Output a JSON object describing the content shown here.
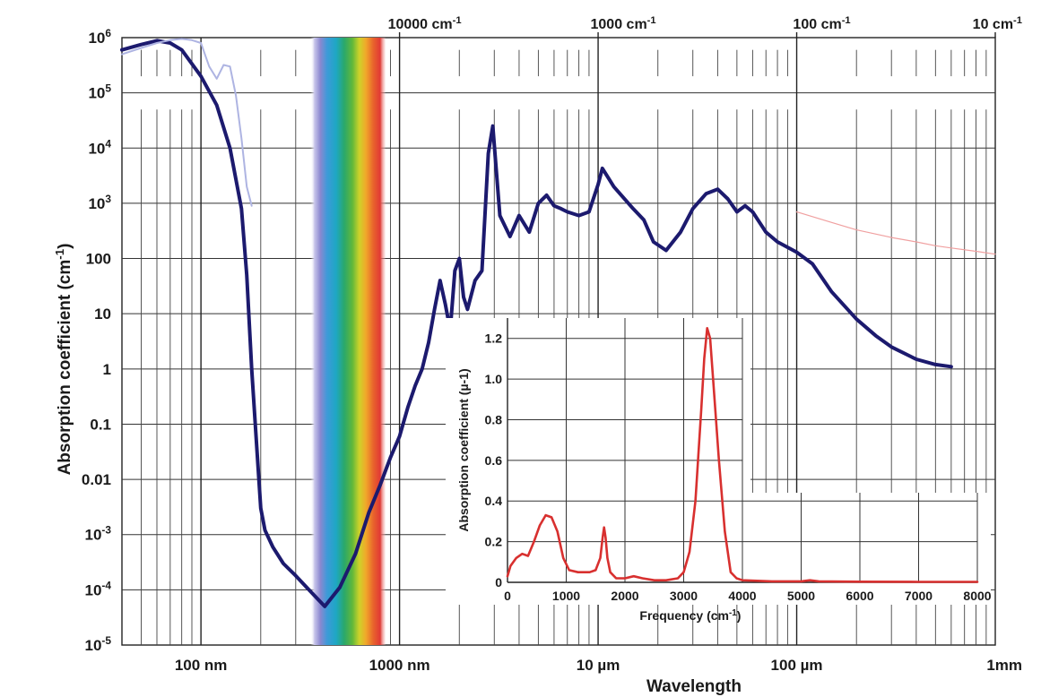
{
  "chart_data": [
    {
      "type": "line",
      "xlabel": "Wavelength",
      "ylabel": "Absorption coefficient (cm-1)",
      "xscale": "log",
      "yscale": "log",
      "xlim_m": [
        4e-08,
        0.001
      ],
      "ylim": [
        1e-05,
        1000000.0
      ],
      "grid": true,
      "x_ticks": [
        {
          "value": 1e-07,
          "label": "100 nm"
        },
        {
          "value": 1e-06,
          "label": "1000 nm"
        },
        {
          "value": 1e-05,
          "label": "10 µm"
        },
        {
          "value": 0.0001,
          "label": "100 µm"
        },
        {
          "value": 0.001,
          "label": "1mm"
        }
      ],
      "top_ticks": [
        {
          "value": 1e-06,
          "label": "10000 cm-1"
        },
        {
          "value": 1e-05,
          "label": "1000 cm-1"
        },
        {
          "value": 0.0001,
          "label": "100 cm-1"
        },
        {
          "value": 0.001,
          "label": "10 cm-1"
        }
      ],
      "y_ticks": [
        {
          "value": 1000000.0,
          "base": "10",
          "exp": "6"
        },
        {
          "value": 100000.0,
          "base": "10",
          "exp": "5"
        },
        {
          "value": 10000.0,
          "base": "10",
          "exp": "4"
        },
        {
          "value": 1000.0,
          "base": "10",
          "exp": "3"
        },
        {
          "value": 100,
          "base": "100",
          "exp": ""
        },
        {
          "value": 10,
          "base": "10",
          "exp": ""
        },
        {
          "value": 1,
          "base": "1",
          "exp": ""
        },
        {
          "value": 0.1,
          "base": "0.1",
          "exp": ""
        },
        {
          "value": 0.01,
          "base": "0.01",
          "exp": ""
        },
        {
          "value": 0.001,
          "base": "10",
          "exp": "-3"
        },
        {
          "value": 0.0001,
          "base": "10",
          "exp": "-4"
        },
        {
          "value": 1e-05,
          "base": "10",
          "exp": "-5"
        }
      ],
      "visible_band_m": [
        3.8e-07,
        7.8e-07
      ],
      "series": [
        {
          "color": "#1c1a6e",
          "x_m": [
            4e-08,
            5e-08,
            6e-08,
            7e-08,
            8e-08,
            1e-07,
            1.2e-07,
            1.4e-07,
            1.6e-07,
            1.7e-07,
            1.8e-07,
            1.9e-07,
            2e-07,
            2.1e-07,
            2.3e-07,
            2.6e-07,
            3e-07,
            3.5e-07,
            4.2e-07,
            5e-07,
            6e-07,
            7e-07,
            8e-07,
            9e-07,
            1e-06,
            1.1e-06,
            1.2e-06,
            1.3e-06,
            1.4e-06,
            1.5e-06,
            1.6e-06,
            1.7e-06,
            1.8e-06,
            1.9e-06,
            2e-06,
            2.1e-06,
            2.2e-06,
            2.4e-06,
            2.6e-06,
            2.8e-06,
            2.95e-06,
            3.2e-06,
            3.6e-06,
            4e-06,
            4.5e-06,
            5e-06,
            5.5e-06,
            6e-06,
            6.5e-06,
            7e-06,
            8e-06,
            9e-06,
            1e-05,
            1.05e-05,
            1.2e-05,
            1.5e-05,
            1.7e-05,
            1.9e-05,
            2.2e-05,
            2.6e-05,
            3e-05,
            3.5e-05,
            4e-05,
            4.5e-05,
            5e-05,
            5.5e-05,
            6e-05,
            7e-05,
            8e-05,
            0.0001,
            0.00012,
            0.00015,
            0.0002,
            0.00025,
            0.0003,
            0.0004,
            0.0005,
            0.0006
          ],
          "y": [
            600000.0,
            750000.0,
            880000.0,
            800000.0,
            600000.0,
            200000.0,
            60000.0,
            10000.0,
            800,
            50,
            1,
            0.05,
            0.003,
            0.0012,
            0.0006,
            0.0003,
            0.00018,
            0.0001,
            5e-05,
            0.00011,
            0.00045,
            0.0025,
            0.008,
            0.025,
            0.06,
            0.2,
            0.5,
            1,
            3,
            12,
            40,
            15,
            5,
            60,
            100,
            20,
            12,
            40,
            60,
            8000,
            25000,
            600,
            250,
            600,
            300,
            1000,
            1400,
            900,
            800,
            700,
            600,
            700,
            2200,
            4300,
            2000,
            800,
            500,
            200,
            140,
            300,
            800,
            1500,
            1800,
            1200,
            700,
            900,
            700,
            300,
            200,
            130,
            80,
            25,
            8,
            4,
            2.5,
            1.5,
            1.2,
            1.1
          ]
        },
        {
          "color": "#aeb4e2",
          "x_m": [
            4e-08,
            5e-08,
            6e-08,
            7e-08,
            8e-08,
            9e-08,
            1e-07,
            1.1e-07,
            1.2e-07,
            1.3e-07,
            1.4e-07,
            1.5e-07,
            1.6e-07,
            1.7e-07,
            1.8e-07
          ],
          "y": [
            500000.0,
            650000.0,
            800000.0,
            900000.0,
            950000.0,
            900000.0,
            800000.0,
            300000.0,
            180000.0,
            320000.0,
            300000.0,
            90000.0,
            15000.0,
            2000,
            900
          ]
        },
        {
          "color": "#f0a0a0",
          "x_m": [
            0.0001,
            0.00015,
            0.0002,
            0.0003,
            0.0004,
            0.0005,
            0.0006,
            0.0008,
            0.001
          ],
          "y": [
            700,
            450,
            330,
            240,
            200,
            170,
            155,
            135,
            120
          ]
        }
      ]
    },
    {
      "type": "line",
      "xlabel": "Frequency (cm-1)",
      "ylabel": "Absorption coefficient (µ-1)",
      "xlim": [
        0,
        8000
      ],
      "ylim": [
        0,
        1.3
      ],
      "grid": true,
      "x_ticks": [
        0,
        1000,
        2000,
        3000,
        4000,
        5000,
        6000,
        7000,
        8000
      ],
      "y_ticks": [
        "0",
        "0.2",
        "0.4",
        "0.6",
        "0.8",
        "1.0",
        "1.2"
      ],
      "series": [
        {
          "color": "#d8302f",
          "x": [
            0,
            50,
            150,
            250,
            350,
            450,
            550,
            650,
            750,
            850,
            950,
            1050,
            1200,
            1400,
            1500,
            1580,
            1620,
            1645,
            1670,
            1700,
            1750,
            1850,
            2000,
            2150,
            2300,
            2500,
            2700,
            2900,
            3000,
            3100,
            3200,
            3300,
            3350,
            3400,
            3450,
            3500,
            3600,
            3700,
            3800,
            3900,
            4000,
            4500,
            5000,
            5150,
            5300,
            6000,
            7000,
            8000
          ],
          "y": [
            0.03,
            0.08,
            0.12,
            0.14,
            0.13,
            0.2,
            0.28,
            0.33,
            0.32,
            0.25,
            0.12,
            0.06,
            0.05,
            0.05,
            0.06,
            0.12,
            0.22,
            0.27,
            0.22,
            0.12,
            0.05,
            0.02,
            0.02,
            0.03,
            0.02,
            0.01,
            0.01,
            0.02,
            0.05,
            0.15,
            0.4,
            0.85,
            1.1,
            1.25,
            1.2,
            1.0,
            0.6,
            0.25,
            0.05,
            0.02,
            0.01,
            0.005,
            0.005,
            0.01,
            0.005,
            0.003,
            0.002,
            0.002
          ]
        }
      ]
    }
  ]
}
